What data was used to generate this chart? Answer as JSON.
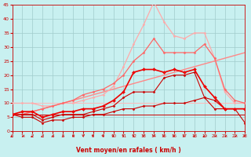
{
  "xlabel": "Vent moyen/en rafales ( km/h )",
  "bg_color": "#c8f0f0",
  "grid_color": "#a0cccc",
  "xlim": [
    0,
    23
  ],
  "ylim": [
    0,
    45
  ],
  "xticks": [
    0,
    1,
    2,
    3,
    4,
    5,
    6,
    7,
    8,
    9,
    10,
    11,
    12,
    13,
    14,
    15,
    16,
    17,
    18,
    19,
    20,
    21,
    22,
    23
  ],
  "yticks": [
    0,
    5,
    10,
    15,
    20,
    25,
    30,
    35,
    40,
    45
  ],
  "series": [
    {
      "x": [
        0,
        1,
        2,
        3,
        4,
        5,
        6,
        7,
        8,
        9,
        10,
        11,
        12,
        13,
        14,
        15,
        16,
        17,
        18,
        19,
        20,
        21,
        22,
        23
      ],
      "y": [
        6,
        5,
        5,
        3,
        4,
        4,
        5,
        5,
        6,
        6,
        7,
        8,
        8,
        9,
        9,
        10,
        10,
        10,
        11,
        12,
        8,
        8,
        8,
        3
      ],
      "color": "#cc0000",
      "lw": 0.8,
      "marker": "D",
      "ms": 1.5,
      "zorder": 5
    },
    {
      "x": [
        0,
        1,
        2,
        3,
        4,
        5,
        6,
        7,
        8,
        9,
        10,
        11,
        12,
        13,
        14,
        15,
        16,
        17,
        18,
        19,
        20,
        21,
        22,
        23
      ],
      "y": [
        6,
        6,
        6,
        4,
        5,
        6,
        6,
        6,
        7,
        8,
        9,
        12,
        14,
        14,
        14,
        19,
        20,
        20,
        21,
        12,
        11,
        8,
        8,
        8
      ],
      "color": "#cc0000",
      "lw": 0.8,
      "marker": "D",
      "ms": 1.5,
      "zorder": 5
    },
    {
      "x": [
        0,
        1,
        2,
        3,
        4,
        5,
        6,
        7,
        8,
        9,
        10,
        11,
        12,
        13,
        14,
        15,
        16,
        17,
        18,
        19,
        20,
        21,
        22,
        23
      ],
      "y": [
        6,
        7,
        7,
        5,
        6,
        7,
        7,
        8,
        8,
        9,
        11,
        14,
        21,
        22,
        22,
        21,
        22,
        21,
        22,
        16,
        12,
        8,
        8,
        8
      ],
      "color": "#ee0000",
      "lw": 1.2,
      "marker": "D",
      "ms": 2.0,
      "zorder": 6
    },
    {
      "x": [
        0,
        1,
        2,
        3,
        4,
        5,
        6,
        7,
        8,
        9,
        10,
        11,
        12,
        13,
        14,
        15,
        16,
        17,
        18,
        19,
        20,
        21,
        22,
        23
      ],
      "y": [
        6,
        6,
        7,
        8,
        9,
        10,
        11,
        12,
        13,
        14,
        15,
        16,
        17,
        18,
        19,
        20,
        21,
        22,
        23,
        24,
        25,
        26,
        27,
        28
      ],
      "color": "#ff8888",
      "lw": 1.0,
      "marker": null,
      "ms": 0,
      "zorder": 3
    },
    {
      "x": [
        0,
        1,
        2,
        3,
        4,
        5,
        6,
        7,
        8,
        9,
        10,
        11,
        12,
        13,
        14,
        15,
        16,
        17,
        18,
        19,
        20,
        21,
        22,
        23
      ],
      "y": [
        6,
        6,
        7,
        8,
        9,
        10,
        11,
        13,
        14,
        15,
        17,
        20,
        25,
        28,
        33,
        28,
        28,
        28,
        28,
        31,
        26,
        15,
        11,
        10
      ],
      "color": "#ff6666",
      "lw": 0.9,
      "marker": "D",
      "ms": 1.5,
      "zorder": 4
    },
    {
      "x": [
        0,
        1,
        2,
        3,
        4,
        5,
        6,
        7,
        8,
        9,
        10,
        11,
        12,
        13,
        14,
        15,
        16,
        17,
        18,
        19,
        20,
        21,
        22,
        23
      ],
      "y": [
        10,
        10,
        10,
        9,
        9,
        10,
        10,
        11,
        12,
        13,
        16,
        23,
        31,
        38,
        46,
        39,
        34,
        33,
        35,
        35,
        26,
        14,
        10,
        10
      ],
      "color": "#ffaaaa",
      "lw": 0.9,
      "marker": "D",
      "ms": 1.5,
      "zorder": 3
    },
    {
      "x": [
        0,
        23
      ],
      "y": [
        6,
        6
      ],
      "color": "#cc0000",
      "lw": 0.7,
      "marker": null,
      "ms": 0,
      "zorder": 2,
      "linestyle": "-"
    },
    {
      "x": [
        0,
        23
      ],
      "y": [
        10,
        10
      ],
      "color": "#ffbbbb",
      "lw": 0.7,
      "marker": null,
      "ms": 0,
      "zorder": 2,
      "linestyle": "-"
    }
  ],
  "wind_directions": [
    225,
    230,
    225,
    220,
    210,
    200,
    190,
    180,
    175,
    170,
    170,
    175,
    175,
    175,
    175,
    170,
    170,
    170,
    160,
    225,
    230,
    230,
    230,
    170
  ]
}
